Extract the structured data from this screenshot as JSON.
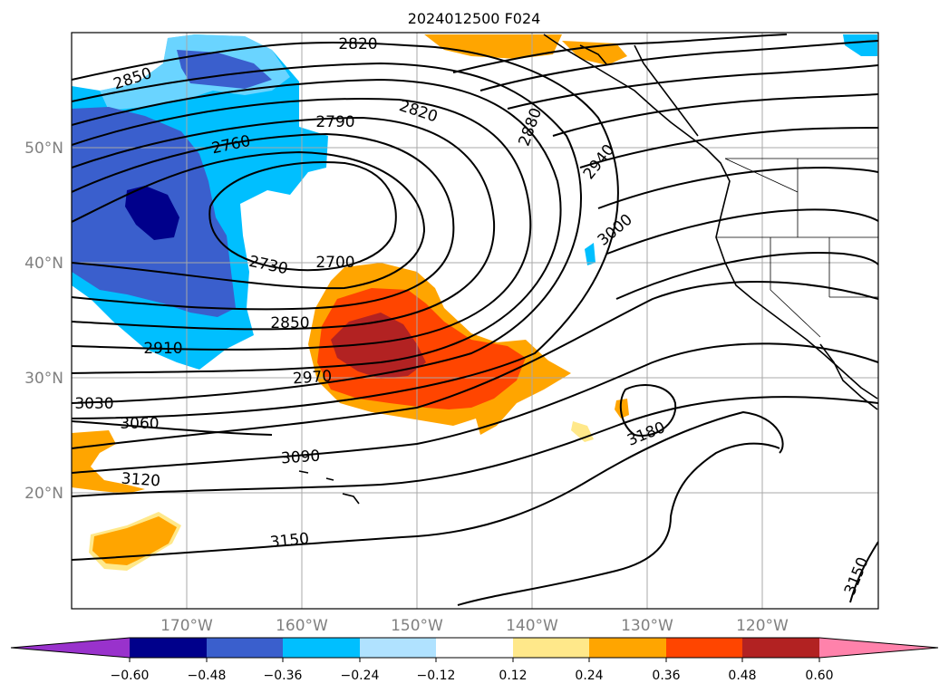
{
  "title": "2024012500 F024",
  "axes": {
    "lat_ticks": [
      "50°N",
      "40°N",
      "30°N",
      "20°N"
    ],
    "lon_ticks": [
      "170°W",
      "160°W",
      "150°W",
      "140°W",
      "130°W",
      "120°W"
    ],
    "lon_range": [
      -180,
      -110
    ],
    "lat_range": [
      10,
      60
    ],
    "grid": true
  },
  "contour_labels": [
    "2820",
    "2850",
    "2790",
    "2820",
    "2760",
    "2880",
    "2940",
    "3000",
    "2730",
    "2700",
    "2850",
    "2910",
    "2970",
    "3030",
    "3060",
    "3090",
    "3120",
    "3180",
    "3150",
    "3150"
  ],
  "colorbar": {
    "tick_labels": [
      "−0.60",
      "−0.48",
      "−0.36",
      "−0.24",
      "−0.12",
      "0.12",
      "0.24",
      "0.36",
      "0.48",
      "0.60"
    ],
    "colors": [
      "#9932cc",
      "#00008b",
      "#3a5fcd",
      "#00bfff",
      "#b0e2ff",
      "#ffffff",
      "#ffe88a",
      "#ffa500",
      "#ff4500",
      "#b22222",
      "#ff82ab"
    ],
    "extend": "both"
  }
}
